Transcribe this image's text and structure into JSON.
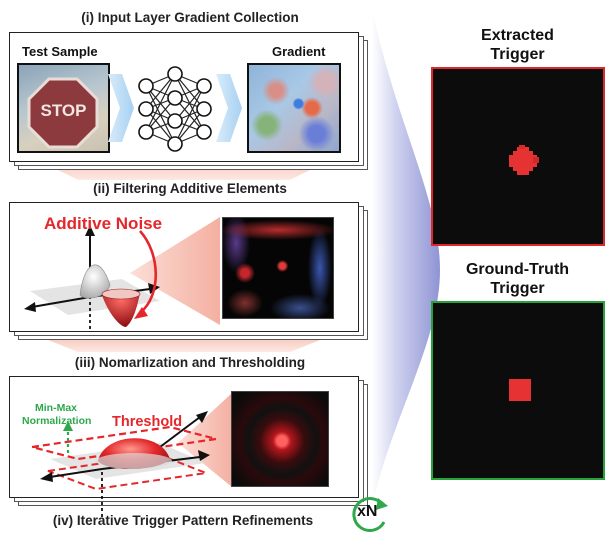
{
  "stages": [
    {
      "title": "(i) Input Layer Gradient Collection",
      "left_label": "Test Sample",
      "right_label": "Gradient",
      "stop_text": "STOP"
    },
    {
      "title": "(ii) Filtering Additive Elements",
      "annotation": "Additive Noise"
    },
    {
      "title": "(iii) Nomarlization and Thresholding",
      "annotation_minmax_line1": "Min-Max",
      "annotation_minmax_line2": "Normalization",
      "annotation_threshold": "Threshold"
    },
    {
      "title": "(iv) Iterative Trigger Pattern Refinements",
      "badge": "xN"
    }
  ],
  "results": {
    "extracted_line1": "Extracted",
    "extracted_line2": "Trigger",
    "groundtruth_line1": "Ground-Truth",
    "groundtruth_line2": "Trigger"
  },
  "colors": {
    "extracted_border": "#e0282c",
    "groundtruth_border": "#27a33a",
    "accent_red": "#e5262b",
    "accent_green": "#2ea84a",
    "funnel_blue": "#9aa0d8"
  }
}
